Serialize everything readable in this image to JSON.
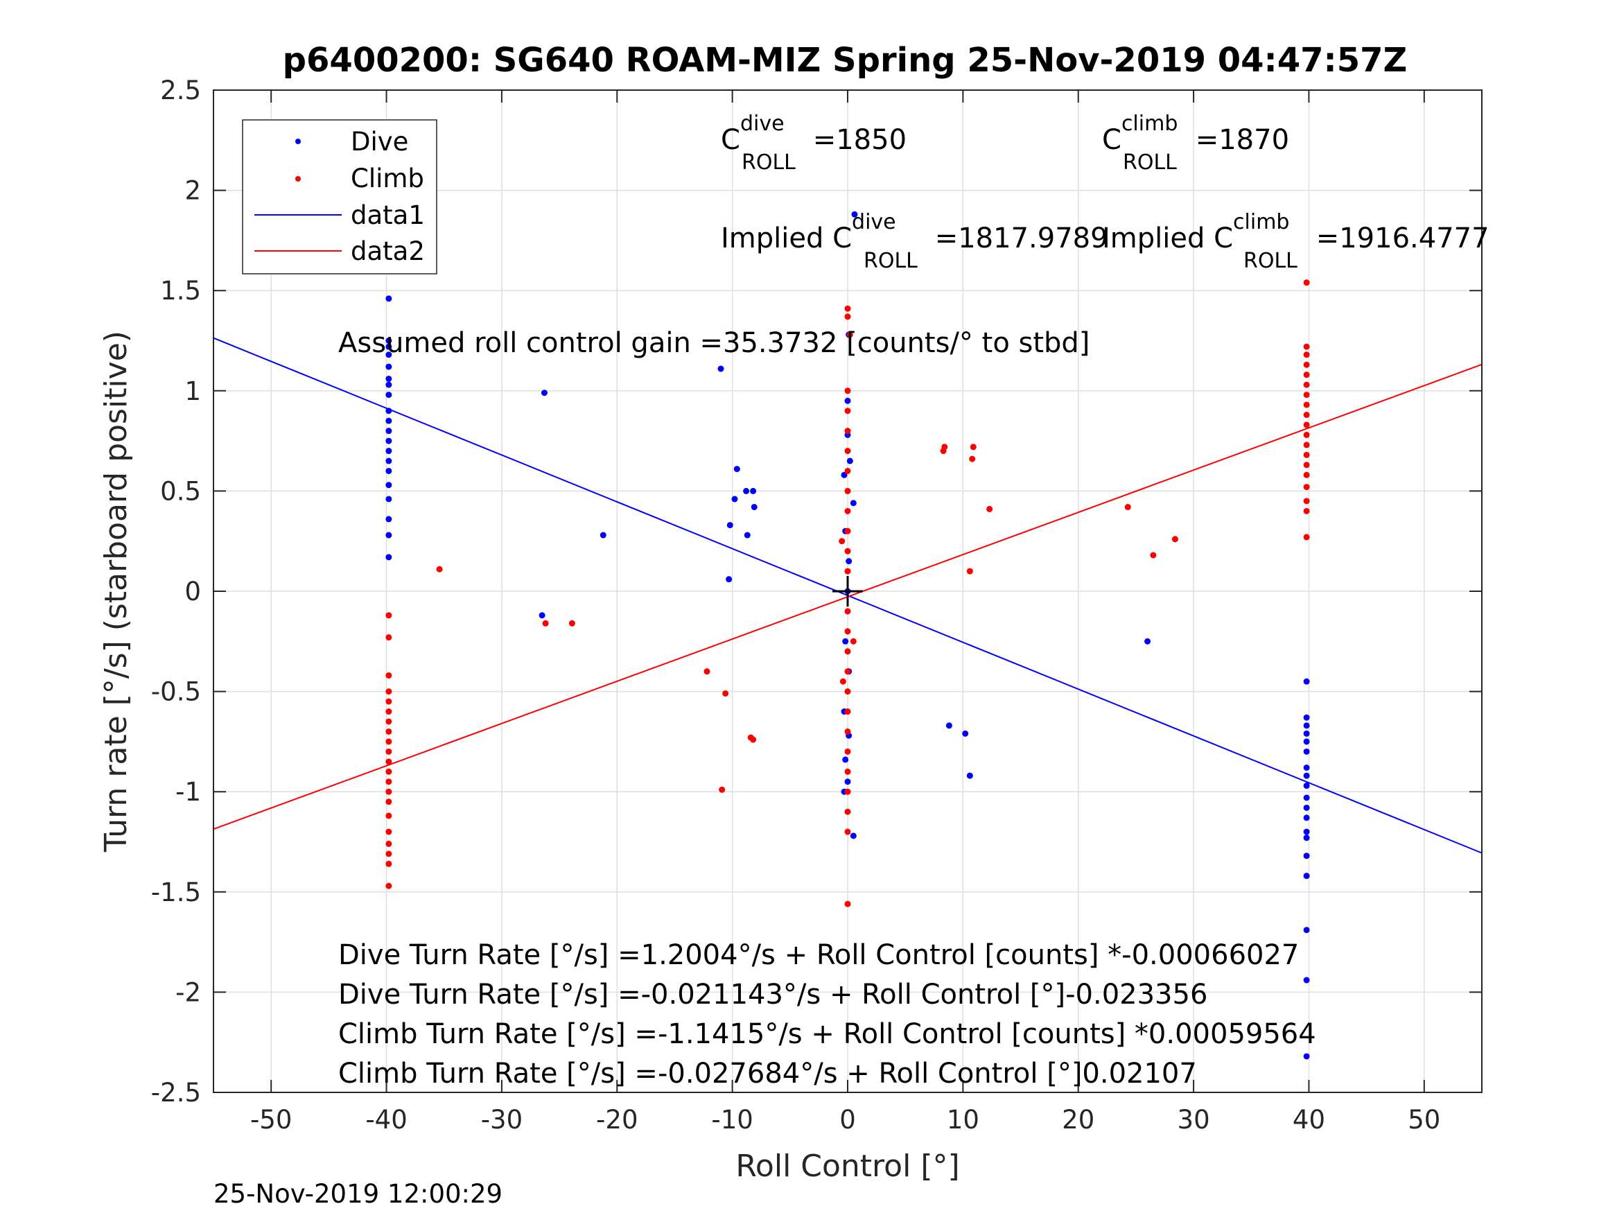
{
  "chart_data": {
    "type": "scatter",
    "title": "p6400200: SG640 ROAM-MIZ Spring 25-Nov-2019 04:47:57Z",
    "xlabel": "Roll Control [°]",
    "ylabel": "Turn rate [°/s] (starboard positive)",
    "xlim": [
      -55,
      55
    ],
    "ylim": [
      -2.5,
      2.5
    ],
    "xticks": [
      "-50",
      "-40",
      "-30",
      "-20",
      "-10",
      "0",
      "10",
      "20",
      "30",
      "40",
      "50"
    ],
    "yticks": [
      "2.5",
      "2",
      "1.5",
      "1",
      "0.5",
      "0",
      "-0.5",
      "-1",
      "-1.5",
      "-2",
      "-2.5"
    ],
    "grid": true,
    "legend_position": "top-left",
    "legend": [
      "Dive",
      "Climb",
      "data1",
      "data2"
    ],
    "series": [
      {
        "name": "Dive",
        "kind": "points",
        "color": "#0000ff",
        "points": [
          [
            -39.8,
            1.46
          ],
          [
            -39.8,
            1.25
          ],
          [
            -39.8,
            1.22
          ],
          [
            -39.8,
            1.18
          ],
          [
            -39.8,
            1.12
          ],
          [
            -39.8,
            1.06
          ],
          [
            -39.8,
            1.03
          ],
          [
            -39.8,
            0.98
          ],
          [
            -39.8,
            0.9
          ],
          [
            -39.8,
            0.85
          ],
          [
            -39.8,
            0.8
          ],
          [
            -39.8,
            0.75
          ],
          [
            -39.8,
            0.7
          ],
          [
            -39.8,
            0.65
          ],
          [
            -39.8,
            0.6
          ],
          [
            -39.8,
            0.53
          ],
          [
            -39.8,
            0.46
          ],
          [
            -39.8,
            0.36
          ],
          [
            -39.8,
            0.28
          ],
          [
            -39.8,
            0.17
          ],
          [
            -26.3,
            0.99
          ],
          [
            -21.2,
            0.28
          ],
          [
            -26.5,
            -0.12
          ],
          [
            -11,
            1.11
          ],
          [
            -9.6,
            0.61
          ],
          [
            -8.8,
            0.5
          ],
          [
            -8.2,
            0.5
          ],
          [
            -9.8,
            0.46
          ],
          [
            -10.2,
            0.33
          ],
          [
            -8.7,
            0.28
          ],
          [
            -10.3,
            0.06
          ],
          [
            -8.1,
            0.42
          ],
          [
            0.6,
            1.88
          ],
          [
            0.1,
            1.28
          ],
          [
            0.0,
            0.95
          ],
          [
            0.0,
            0.78
          ],
          [
            0.2,
            0.65
          ],
          [
            0.5,
            0.44
          ],
          [
            -0.3,
            0.58
          ],
          [
            -0.2,
            0.3
          ],
          [
            0.1,
            0.15
          ],
          [
            0.0,
            0.0
          ],
          [
            -0.2,
            -0.25
          ],
          [
            0.1,
            -0.4
          ],
          [
            -0.3,
            -0.6
          ],
          [
            0.1,
            -0.72
          ],
          [
            -0.2,
            -0.84
          ],
          [
            0.0,
            -0.95
          ],
          [
            -0.3,
            -1.0
          ],
          [
            0.5,
            -1.22
          ],
          [
            8.8,
            -0.67
          ],
          [
            10.2,
            -0.71
          ],
          [
            10.6,
            -0.92
          ],
          [
            26,
            -0.25
          ],
          [
            39.8,
            -0.45
          ],
          [
            39.8,
            -0.63
          ],
          [
            39.8,
            -0.67
          ],
          [
            39.8,
            -0.71
          ],
          [
            39.8,
            -0.75
          ],
          [
            39.8,
            -0.8
          ],
          [
            39.8,
            -0.88
          ],
          [
            39.8,
            -0.92
          ],
          [
            39.8,
            -0.97
          ],
          [
            39.8,
            -1.03
          ],
          [
            39.8,
            -1.08
          ],
          [
            39.8,
            -1.13
          ],
          [
            39.8,
            -1.2
          ],
          [
            39.8,
            -1.23
          ],
          [
            39.8,
            -1.32
          ],
          [
            39.8,
            -1.42
          ],
          [
            39.8,
            -1.69
          ],
          [
            39.8,
            -1.94
          ],
          [
            39.8,
            -2.32
          ]
        ]
      },
      {
        "name": "Climb",
        "kind": "points",
        "color": "#ff0000",
        "points": [
          [
            -39.8,
            -0.5
          ],
          [
            -39.8,
            -0.55
          ],
          [
            -39.8,
            -0.6
          ],
          [
            -39.8,
            -0.65
          ],
          [
            -39.8,
            -0.7
          ],
          [
            -39.8,
            -0.75
          ],
          [
            -39.8,
            -0.8
          ],
          [
            -39.8,
            -0.85
          ],
          [
            -39.8,
            -0.9
          ],
          [
            -39.8,
            -0.95
          ],
          [
            -39.8,
            -1.0
          ],
          [
            -39.8,
            -1.05
          ],
          [
            -39.8,
            -1.12
          ],
          [
            -39.8,
            -1.2
          ],
          [
            -39.8,
            -1.26
          ],
          [
            -39.8,
            -1.31
          ],
          [
            -39.8,
            -1.36
          ],
          [
            -39.8,
            -1.47
          ],
          [
            -39.8,
            -0.12
          ],
          [
            -39.8,
            -0.23
          ],
          [
            -39.8,
            -0.42
          ],
          [
            -35.4,
            0.11
          ],
          [
            -26.2,
            -0.16
          ],
          [
            -23.9,
            -0.16
          ],
          [
            -12.2,
            -0.4
          ],
          [
            -10.6,
            -0.51
          ],
          [
            -10.9,
            -0.99
          ],
          [
            -8.4,
            -0.73
          ],
          [
            -8.2,
            -0.74
          ],
          [
            0.0,
            1.41
          ],
          [
            0.0,
            1.37
          ],
          [
            0.2,
            1.28
          ],
          [
            0.0,
            1.0
          ],
          [
            0.0,
            0.9
          ],
          [
            0.0,
            0.8
          ],
          [
            0.0,
            0.7
          ],
          [
            0.0,
            0.6
          ],
          [
            0.0,
            0.5
          ],
          [
            0.0,
            0.4
          ],
          [
            0.0,
            0.3
          ],
          [
            0.0,
            0.2
          ],
          [
            0.0,
            0.1
          ],
          [
            0.0,
            -0.1
          ],
          [
            0.0,
            -0.2
          ],
          [
            0.0,
            -0.3
          ],
          [
            0.0,
            -0.4
          ],
          [
            0.0,
            -0.5
          ],
          [
            0.0,
            -0.6
          ],
          [
            0.0,
            -0.7
          ],
          [
            0.0,
            -0.8
          ],
          [
            0.0,
            -0.9
          ],
          [
            0.0,
            -1.0
          ],
          [
            0.0,
            -1.1
          ],
          [
            0.0,
            -1.2
          ],
          [
            0.0,
            -1.56
          ],
          [
            -0.5,
            0.25
          ],
          [
            0.5,
            -0.25
          ],
          [
            -0.4,
            -0.45
          ],
          [
            8.3,
            0.7
          ],
          [
            8.4,
            0.72
          ],
          [
            10.8,
            0.66
          ],
          [
            10.9,
            0.72
          ],
          [
            12.3,
            0.41
          ],
          [
            10.6,
            0.1
          ],
          [
            24.3,
            0.42
          ],
          [
            26.5,
            0.18
          ],
          [
            28.4,
            0.26
          ],
          [
            39.8,
            1.54
          ],
          [
            39.8,
            1.22
          ],
          [
            39.8,
            1.18
          ],
          [
            39.8,
            1.13
          ],
          [
            39.8,
            1.08
          ],
          [
            39.8,
            1.03
          ],
          [
            39.8,
            0.98
          ],
          [
            39.8,
            0.93
          ],
          [
            39.8,
            0.88
          ],
          [
            39.8,
            0.83
          ],
          [
            39.8,
            0.78
          ],
          [
            39.8,
            0.73
          ],
          [
            39.8,
            0.68
          ],
          [
            39.8,
            0.63
          ],
          [
            39.8,
            0.58
          ],
          [
            39.8,
            0.52
          ],
          [
            39.8,
            0.45
          ],
          [
            39.8,
            0.4
          ],
          [
            39.8,
            0.27
          ]
        ]
      },
      {
        "name": "data1",
        "kind": "line",
        "color": "#0000ff",
        "intercept": -0.021143,
        "slope": -0.023356
      },
      {
        "name": "data2",
        "kind": "line",
        "color": "#ff0000",
        "intercept": -0.027684,
        "slope": 0.02107
      }
    ],
    "center_marker": [
      0,
      0
    ],
    "annotations": {
      "c_dive_label": "C",
      "c_dive_sup": "dive",
      "c_dive_sub": "ROLL",
      "c_dive_value": " =1850",
      "c_climb_label": "C",
      "c_climb_sup": "climb",
      "c_climb_sub": "ROLL",
      "c_climb_value": " =1870",
      "implied_dive_label": "Implied C",
      "implied_dive_sup": "dive",
      "implied_dive_sub": "ROLL",
      "implied_dive_value": " =1817.9789",
      "implied_climb_label": "Implied C",
      "implied_climb_sup": "climb",
      "implied_climb_sub": "ROLL",
      "implied_climb_value": " =1916.4777",
      "gain_text": "Assumed roll control gain =35.3732 [counts/° to stbd]",
      "fit_lines": [
        "Dive Turn Rate [°/s] =1.2004°/s + Roll Control [counts] *-0.00066027",
        "Dive Turn Rate [°/s] =-0.021143°/s + Roll Control [°]-0.023356",
        "Climb Turn Rate [°/s] =-1.1415°/s + Roll Control [counts] *0.00059564",
        "Climb Turn Rate [°/s] =-0.027684°/s + Roll Control [°]0.02107"
      ]
    },
    "timestamp": "25-Nov-2019 12:00:29"
  }
}
